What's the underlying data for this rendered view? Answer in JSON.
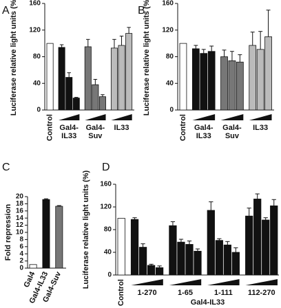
{
  "chart_data": [
    {
      "type": "bar",
      "panel": "A",
      "ylabel": "Luciferase relative light units (%)",
      "ylim": [
        0,
        160
      ],
      "yticks": [
        0,
        40,
        80,
        120,
        160
      ],
      "groups": [
        {
          "name": "Control",
          "color": "#ffffff",
          "values": [
            100
          ]
        },
        {
          "name": "Gal4-IL33",
          "color": "#111111",
          "values": [
            94,
            49,
            18
          ],
          "errors": [
            4,
            7,
            1
          ]
        },
        {
          "name": "Gal4-Suv",
          "color": "#777777",
          "values": [
            95,
            38,
            20
          ],
          "errors": [
            11,
            8,
            3
          ]
        },
        {
          "name": "IL33",
          "color": "#bbbbbb",
          "values": [
            93,
            97,
            115
          ],
          "errors": [
            13,
            14,
            9
          ]
        }
      ]
    },
    {
      "type": "bar",
      "panel": "B",
      "ylabel": "Luciferase relative light units (%)",
      "ylim": [
        0,
        160
      ],
      "yticks": [
        0,
        40,
        80,
        120,
        160
      ],
      "groups": [
        {
          "name": "Control",
          "color": "#ffffff",
          "values": [
            100
          ]
        },
        {
          "name": "Gal4-IL33",
          "color": "#111111",
          "values": [
            92,
            85,
            88
          ],
          "errors": [
            5,
            6,
            8
          ]
        },
        {
          "name": "Gal4-Suv",
          "color": "#777777",
          "values": [
            80,
            74,
            72
          ],
          "errors": [
            10,
            14,
            11
          ]
        },
        {
          "name": "IL33",
          "color": "#bbbbbb",
          "values": [
            97,
            91,
            110
          ],
          "errors": [
            20,
            27,
            40
          ]
        }
      ]
    },
    {
      "type": "bar",
      "panel": "C",
      "ylabel": "Fold repression",
      "ylim": [
        0,
        20
      ],
      "yticks": [
        0,
        2,
        4,
        6,
        8,
        10,
        12,
        14,
        16,
        18,
        20
      ],
      "groups": [
        {
          "name": "Gal4",
          "color": "#ffffff",
          "values": [
            1
          ]
        },
        {
          "name": "Gal4-IL33",
          "color": "#111111",
          "values": [
            19.2
          ],
          "errors": [
            0.2
          ]
        },
        {
          "name": "Gal4-Suv",
          "color": "#777777",
          "values": [
            17.3
          ],
          "errors": [
            0.2
          ]
        }
      ]
    },
    {
      "type": "bar",
      "panel": "D",
      "ylabel": "Luciferase relative light units (%)",
      "xlabel": "Gal4-IL33",
      "ylim": [
        0,
        160
      ],
      "yticks": [
        0,
        40,
        80,
        120,
        160
      ],
      "groups": [
        {
          "name": "Control",
          "color": "#ffffff",
          "values": [
            100
          ]
        },
        {
          "name": "1-270",
          "color": "#111111",
          "values": [
            98,
            49,
            17,
            13
          ],
          "errors": [
            3,
            6,
            2,
            3
          ]
        },
        {
          "name": "1-65",
          "color": "#111111",
          "values": [
            87,
            58,
            54,
            42
          ],
          "errors": [
            7,
            5,
            6,
            4
          ]
        },
        {
          "name": "1-111",
          "color": "#111111",
          "values": [
            114,
            61,
            53,
            40
          ],
          "errors": [
            15,
            3,
            6,
            8
          ]
        },
        {
          "name": "112-270",
          "color": "#111111",
          "values": [
            104,
            134,
            97,
            122
          ],
          "errors": [
            14,
            9,
            4,
            11
          ]
        }
      ]
    }
  ]
}
